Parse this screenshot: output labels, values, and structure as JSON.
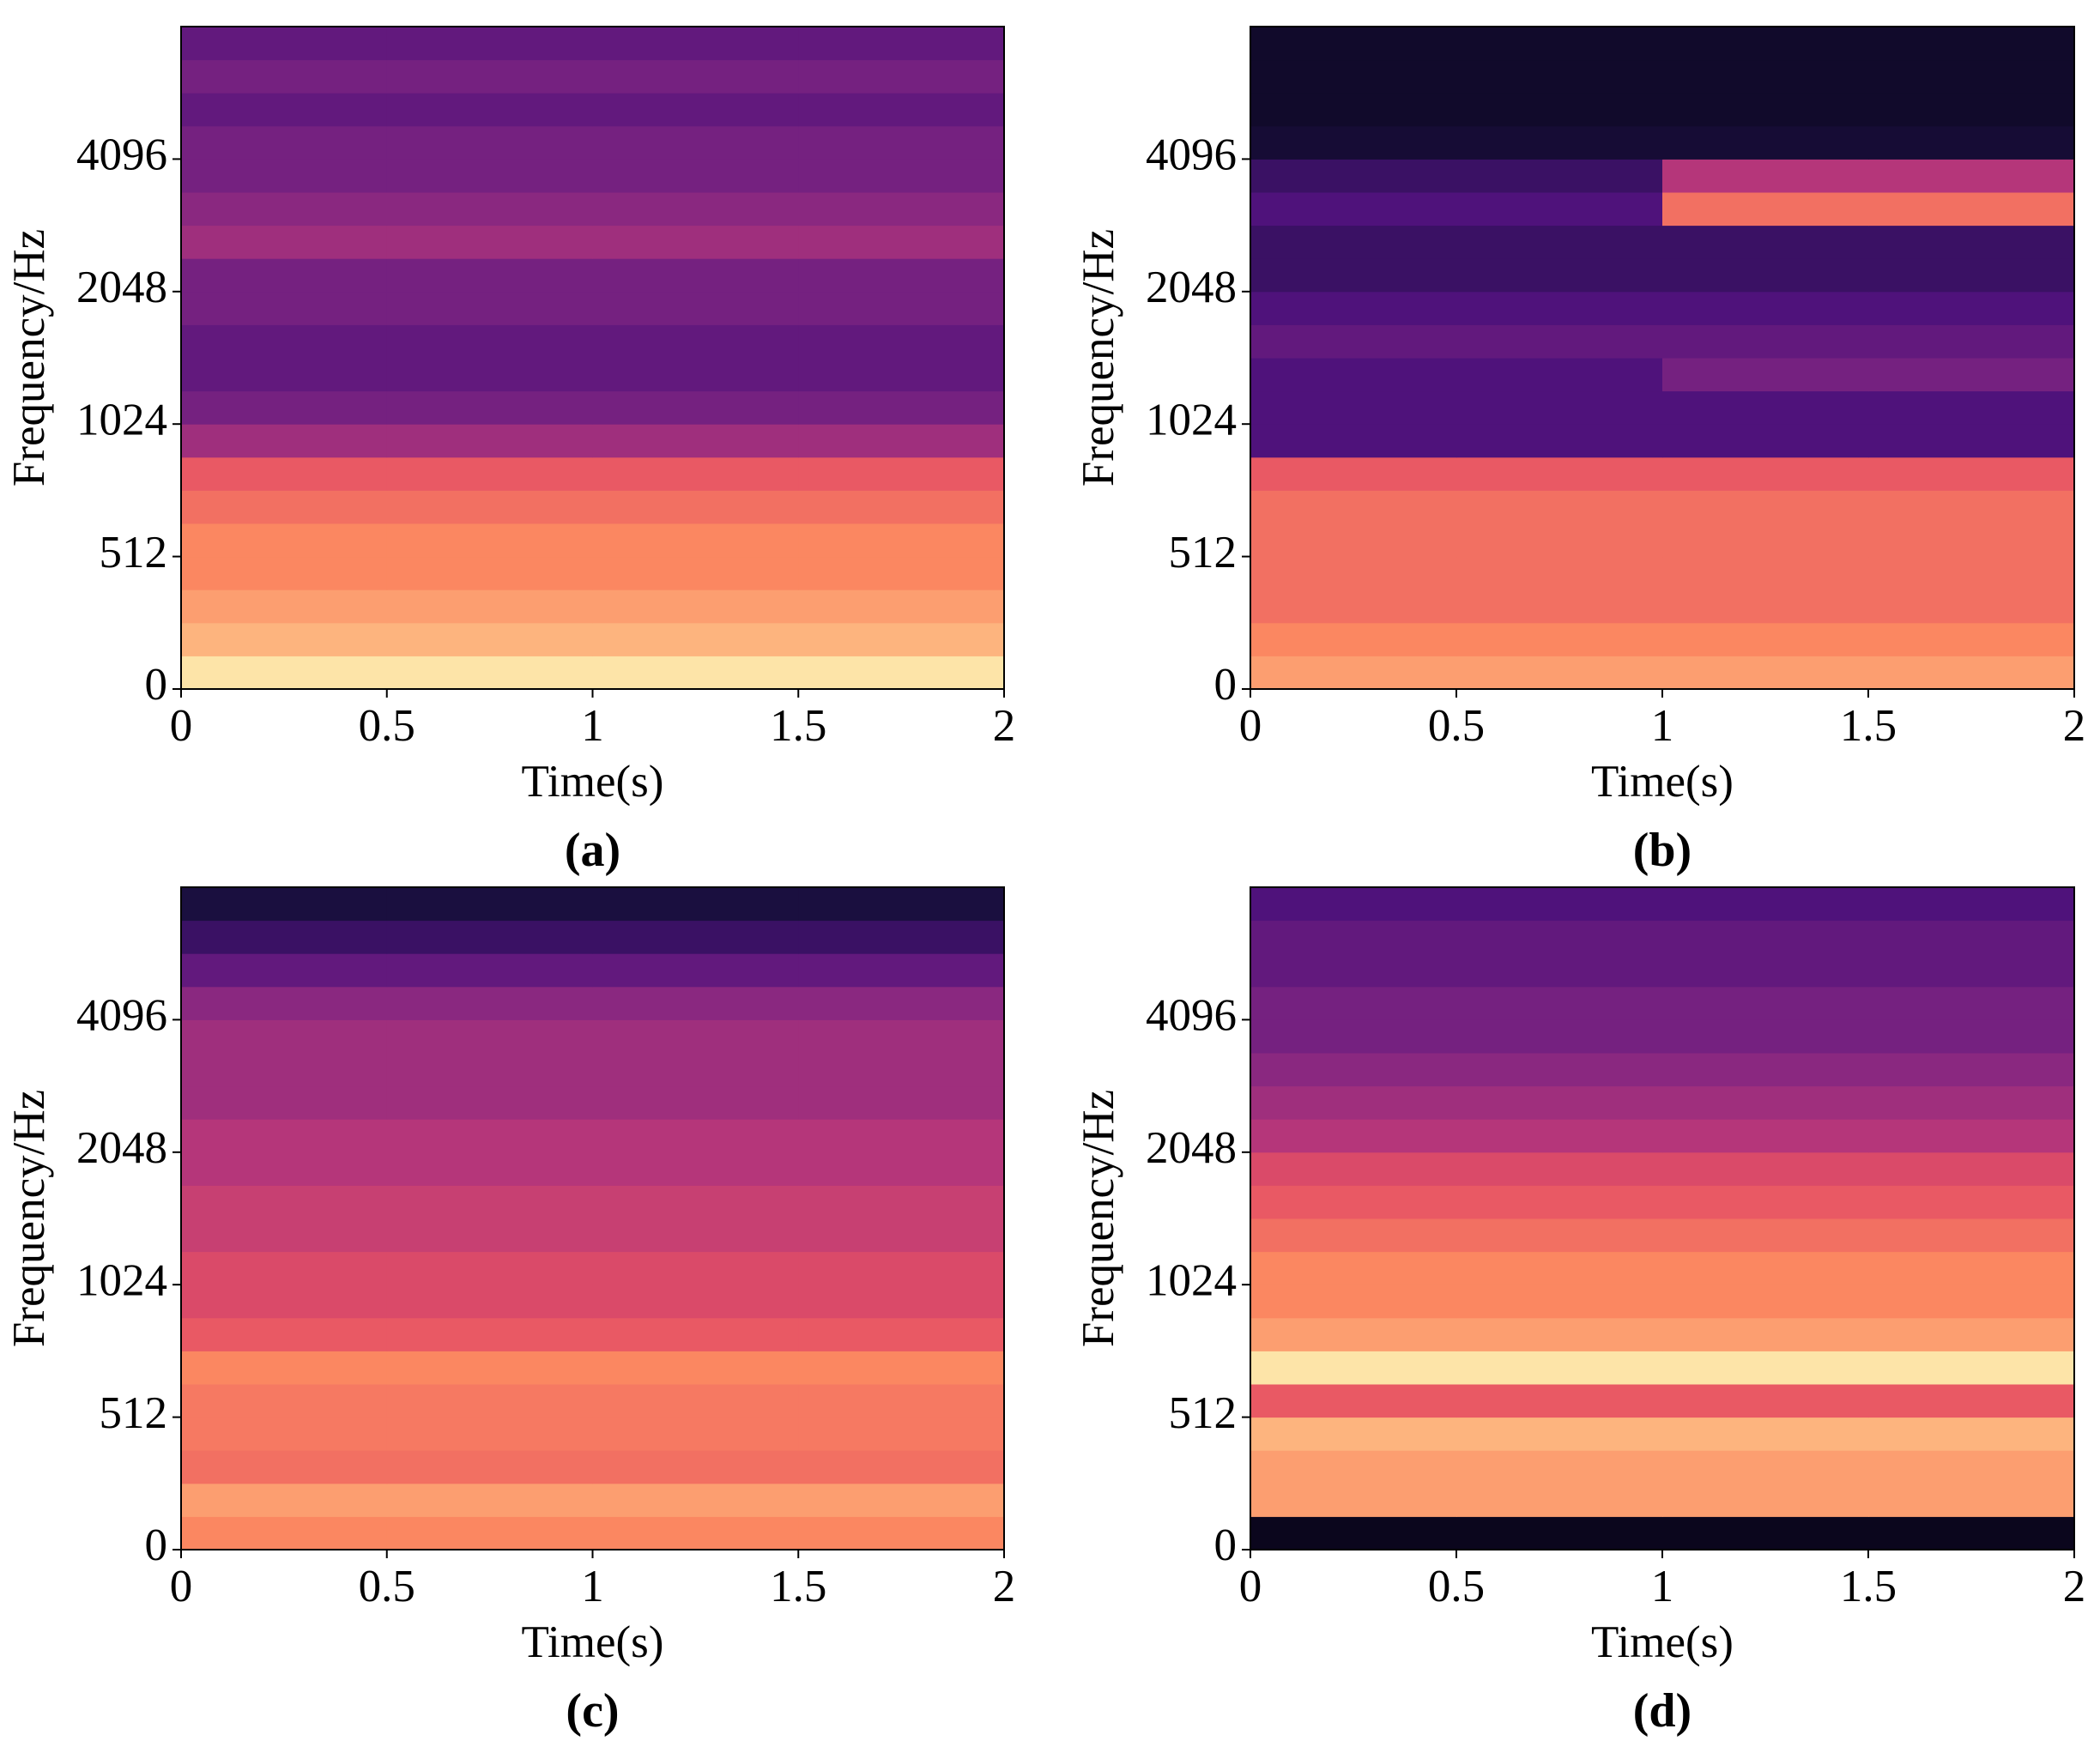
{
  "chart_data": [
    {
      "type": "heatmap",
      "label": "(a)",
      "xlabel": "Time(s)",
      "ylabel": "Frequency/Hz",
      "xlim": [
        0,
        2
      ],
      "xticks": [
        0,
        0.5,
        1,
        1.5,
        2
      ],
      "ylim": [
        0,
        8192
      ],
      "yticks": [
        0,
        512,
        1024,
        2048,
        4096
      ],
      "yscale": "symlog",
      "linthresh": 512,
      "colormap": "magma",
      "z": [
        [
          0.95,
          0.95,
          0.95,
          0.95
        ],
        [
          0.85,
          0.85,
          0.85,
          0.85
        ],
        [
          0.8,
          0.8,
          0.8,
          0.8
        ],
        [
          0.75,
          0.75,
          0.75,
          0.75
        ],
        [
          0.75,
          0.75,
          0.75,
          0.75
        ],
        [
          0.7,
          0.7,
          0.7,
          0.7
        ],
        [
          0.65,
          0.65,
          0.65,
          0.65
        ],
        [
          0.45,
          0.45,
          0.45,
          0.45
        ],
        [
          0.35,
          0.35,
          0.35,
          0.35
        ],
        [
          0.3,
          0.3,
          0.3,
          0.3
        ],
        [
          0.3,
          0.3,
          0.3,
          0.3
        ],
        [
          0.35,
          0.35,
          0.35,
          0.35
        ],
        [
          0.35,
          0.35,
          0.35,
          0.35
        ],
        [
          0.45,
          0.45,
          0.45,
          0.45
        ],
        [
          0.4,
          0.4,
          0.4,
          0.4
        ],
        [
          0.35,
          0.35,
          0.35,
          0.35
        ],
        [
          0.35,
          0.35,
          0.35,
          0.35
        ],
        [
          0.3,
          0.3,
          0.3,
          0.3
        ],
        [
          0.35,
          0.35,
          0.35,
          0.35
        ],
        [
          0.3,
          0.3,
          0.3,
          0.3
        ]
      ]
    },
    {
      "type": "heatmap",
      "label": "(b)",
      "xlabel": "Time(s)",
      "ylabel": "Frequency/Hz",
      "xlim": [
        0,
        2
      ],
      "xticks": [
        0,
        0.5,
        1,
        1.5,
        2
      ],
      "ylim": [
        0,
        8192
      ],
      "yticks": [
        0,
        512,
        1024,
        2048,
        4096
      ],
      "yscale": "symlog",
      "linthresh": 512,
      "colormap": "magma",
      "z": [
        [
          0.8,
          0.8,
          0.8,
          0.8
        ],
        [
          0.75,
          0.75,
          0.75,
          0.75
        ],
        [
          0.7,
          0.7,
          0.7,
          0.7
        ],
        [
          0.7,
          0.7,
          0.7,
          0.7
        ],
        [
          0.7,
          0.7,
          0.7,
          0.7
        ],
        [
          0.7,
          0.7,
          0.7,
          0.7
        ],
        [
          0.65,
          0.65,
          0.65,
          0.65
        ],
        [
          0.25,
          0.25,
          0.25,
          0.25
        ],
        [
          0.25,
          0.25,
          0.25,
          0.25
        ],
        [
          0.25,
          0.25,
          0.35,
          0.35
        ],
        [
          0.3,
          0.3,
          0.3,
          0.3
        ],
        [
          0.25,
          0.25,
          0.25,
          0.25
        ],
        [
          0.2,
          0.2,
          0.2,
          0.2
        ],
        [
          0.2,
          0.2,
          0.2,
          0.2
        ],
        [
          0.25,
          0.25,
          0.7,
          0.7
        ],
        [
          0.2,
          0.2,
          0.5,
          0.5
        ],
        [
          0.1,
          0.1,
          0.1,
          0.1
        ],
        [
          0.08,
          0.08,
          0.08,
          0.08
        ],
        [
          0.08,
          0.08,
          0.08,
          0.08
        ],
        [
          0.08,
          0.08,
          0.08,
          0.08
        ]
      ]
    },
    {
      "type": "heatmap",
      "label": "(c)",
      "xlabel": "Time(s)",
      "ylabel": "Frequency/Hz",
      "xlim": [
        0,
        2
      ],
      "xticks": [
        0,
        0.5,
        1,
        1.5,
        2
      ],
      "ylim": [
        0,
        8192
      ],
      "yticks": [
        0,
        512,
        1024,
        2048,
        4096
      ],
      "yscale": "symlog",
      "linthresh": 512,
      "colormap": "magma",
      "z": [
        [
          0.75,
          0.75,
          0.75,
          0.75
        ],
        [
          0.8,
          0.8,
          0.8,
          0.8
        ],
        [
          0.7,
          0.7,
          0.7,
          0.7
        ],
        [
          0.72,
          0.72,
          0.72,
          0.72
        ],
        [
          0.72,
          0.72,
          0.72,
          0.72
        ],
        [
          0.75,
          0.75,
          0.75,
          0.75
        ],
        [
          0.65,
          0.65,
          0.65,
          0.65
        ],
        [
          0.6,
          0.6,
          0.6,
          0.6
        ],
        [
          0.6,
          0.6,
          0.6,
          0.6
        ],
        [
          0.55,
          0.55,
          0.55,
          0.55
        ],
        [
          0.55,
          0.55,
          0.55,
          0.55
        ],
        [
          0.5,
          0.5,
          0.5,
          0.5
        ],
        [
          0.5,
          0.5,
          0.5,
          0.5
        ],
        [
          0.45,
          0.45,
          0.45,
          0.45
        ],
        [
          0.45,
          0.45,
          0.45,
          0.45
        ],
        [
          0.45,
          0.45,
          0.45,
          0.45
        ],
        [
          0.4,
          0.4,
          0.4,
          0.4
        ],
        [
          0.3,
          0.3,
          0.3,
          0.3
        ],
        [
          0.2,
          0.2,
          0.2,
          0.2
        ],
        [
          0.12,
          0.12,
          0.12,
          0.12
        ]
      ]
    },
    {
      "type": "heatmap",
      "label": "(d)",
      "xlabel": "Time(s)",
      "ylabel": "Frequency/Hz",
      "xlim": [
        0,
        2
      ],
      "xticks": [
        0,
        0.5,
        1,
        1.5,
        2
      ],
      "ylim": [
        0,
        8192
      ],
      "yticks": [
        0,
        512,
        1024,
        2048,
        4096
      ],
      "yscale": "symlog",
      "linthresh": 512,
      "colormap": "magma",
      "z": [
        [
          0.05,
          0.05,
          0.05,
          0.05
        ],
        [
          0.8,
          0.8,
          0.8,
          0.8
        ],
        [
          0.8,
          0.8,
          0.8,
          0.8
        ],
        [
          0.85,
          0.85,
          0.85,
          0.85
        ],
        [
          0.65,
          0.65,
          0.65,
          0.65
        ],
        [
          0.95,
          0.95,
          0.95,
          0.95
        ],
        [
          0.8,
          0.8,
          0.8,
          0.8
        ],
        [
          0.75,
          0.75,
          0.75,
          0.75
        ],
        [
          0.75,
          0.75,
          0.75,
          0.75
        ],
        [
          0.7,
          0.7,
          0.7,
          0.7
        ],
        [
          0.65,
          0.65,
          0.65,
          0.65
        ],
        [
          0.6,
          0.6,
          0.6,
          0.6
        ],
        [
          0.5,
          0.5,
          0.5,
          0.5
        ],
        [
          0.45,
          0.45,
          0.45,
          0.45
        ],
        [
          0.4,
          0.4,
          0.4,
          0.4
        ],
        [
          0.35,
          0.35,
          0.35,
          0.35
        ],
        [
          0.35,
          0.35,
          0.35,
          0.35
        ],
        [
          0.3,
          0.3,
          0.3,
          0.3
        ],
        [
          0.3,
          0.3,
          0.3,
          0.3
        ],
        [
          0.25,
          0.25,
          0.25,
          0.25
        ]
      ]
    }
  ]
}
